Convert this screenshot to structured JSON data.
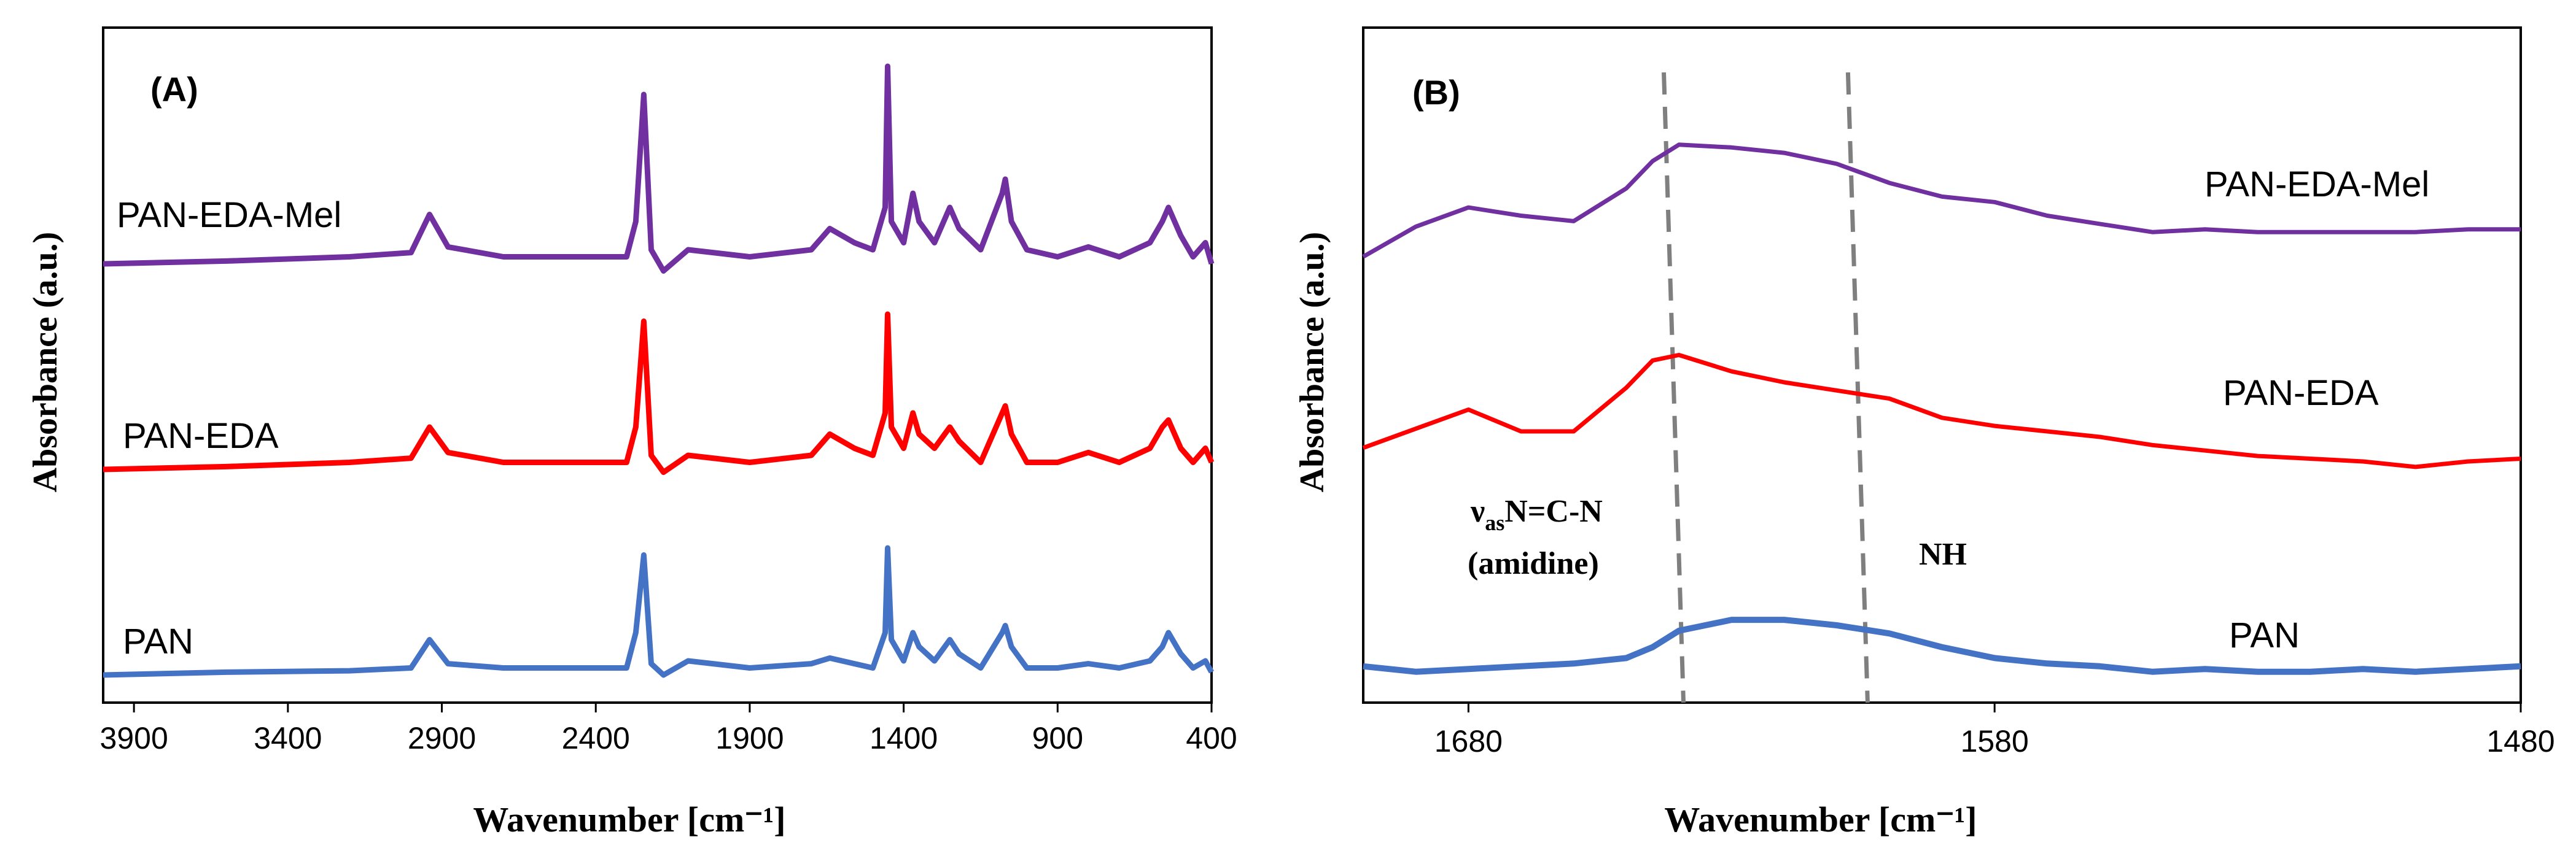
{
  "chart_data": [
    {
      "type": "line",
      "panel_label": "(A)",
      "xlabel": "Wavenumber [cm⁻¹]",
      "ylabel": "Absorbance (a.u.)",
      "xlim": [
        4000,
        400
      ],
      "x_ticks": [
        3900,
        3400,
        2900,
        2400,
        1900,
        1400,
        900,
        400
      ],
      "x_tick_labels": [
        "3900",
        "3400",
        "2900",
        "2400",
        "1900",
        "1400",
        "900",
        "400"
      ],
      "series": [
        {
          "name": "PAN-EDA-Mel",
          "color": "#7030A0",
          "offset": 2.0,
          "x": [
            4000,
            3600,
            3200,
            3000,
            2940,
            2880,
            2700,
            2300,
            2270,
            2244,
            2220,
            2180,
            2100,
            1900,
            1700,
            1640,
            1560,
            1500,
            1460,
            1452,
            1440,
            1400,
            1370,
            1350,
            1300,
            1250,
            1220,
            1150,
            1080,
            1070,
            1050,
            1000,
            900,
            800,
            700,
            600,
            560,
            540,
            500,
            460,
            420,
            400
          ],
          "y": [
            0.0,
            0.02,
            0.05,
            0.08,
            0.35,
            0.12,
            0.05,
            0.05,
            0.3,
            1.2,
            0.1,
            -0.05,
            0.1,
            0.05,
            0.1,
            0.25,
            0.15,
            0.1,
            0.4,
            1.4,
            0.3,
            0.15,
            0.5,
            0.3,
            0.15,
            0.4,
            0.25,
            0.1,
            0.5,
            0.6,
            0.3,
            0.1,
            0.05,
            0.12,
            0.05,
            0.15,
            0.3,
            0.4,
            0.2,
            0.05,
            0.15,
            0.0
          ]
        },
        {
          "name": "PAN-EDA",
          "color": "#FF0000",
          "offset": 1.0,
          "x": [
            4000,
            3600,
            3200,
            3000,
            2940,
            2880,
            2700,
            2300,
            2270,
            2244,
            2220,
            2180,
            2100,
            1900,
            1700,
            1640,
            1560,
            1500,
            1460,
            1452,
            1440,
            1400,
            1370,
            1350,
            1300,
            1250,
            1220,
            1150,
            1080,
            1070,
            1050,
            1000,
            900,
            800,
            700,
            600,
            560,
            540,
            500,
            460,
            420,
            400
          ],
          "y": [
            0.0,
            0.02,
            0.05,
            0.08,
            0.3,
            0.12,
            0.05,
            0.05,
            0.3,
            1.05,
            0.1,
            -0.02,
            0.1,
            0.05,
            0.1,
            0.25,
            0.15,
            0.1,
            0.4,
            1.1,
            0.3,
            0.15,
            0.4,
            0.25,
            0.15,
            0.3,
            0.2,
            0.05,
            0.4,
            0.45,
            0.25,
            0.05,
            0.05,
            0.12,
            0.05,
            0.15,
            0.3,
            0.35,
            0.15,
            0.05,
            0.15,
            0.05
          ]
        },
        {
          "name": "PAN",
          "color": "#4472C4",
          "offset": 0.0,
          "x": [
            4000,
            3600,
            3200,
            3000,
            2940,
            2880,
            2700,
            2300,
            2270,
            2244,
            2220,
            2180,
            2100,
            1900,
            1700,
            1640,
            1560,
            1500,
            1460,
            1452,
            1440,
            1400,
            1370,
            1350,
            1300,
            1250,
            1220,
            1150,
            1080,
            1070,
            1050,
            1000,
            900,
            800,
            700,
            600,
            560,
            540,
            500,
            460,
            420,
            400
          ],
          "y": [
            0.0,
            0.02,
            0.03,
            0.05,
            0.25,
            0.08,
            0.05,
            0.05,
            0.3,
            0.85,
            0.08,
            0.0,
            0.1,
            0.05,
            0.08,
            0.12,
            0.08,
            0.05,
            0.3,
            0.9,
            0.25,
            0.1,
            0.3,
            0.2,
            0.1,
            0.25,
            0.15,
            0.05,
            0.3,
            0.35,
            0.2,
            0.05,
            0.05,
            0.08,
            0.05,
            0.1,
            0.2,
            0.3,
            0.15,
            0.05,
            0.1,
            0.02
          ]
        }
      ]
    },
    {
      "type": "line",
      "panel_label": "(B)",
      "xlabel": "Wavenumber [cm⁻¹]",
      "ylabel": "Absorbance (a.u.)",
      "xlim": [
        1700,
        1480
      ],
      "x_ticks": [
        1680,
        1580,
        1480
      ],
      "x_tick_labels": [
        "1680",
        "1580",
        "1480"
      ],
      "vlines": [
        1641,
        1606
      ],
      "annotations": {
        "nu": "ν",
        "nu_sub": "as",
        "bond": "N=C-N",
        "amidine": "(amidine)",
        "nh": "NH"
      },
      "series": [
        {
          "name": "PAN-EDA-Mel",
          "color": "#7030A0",
          "x": [
            1700,
            1690,
            1680,
            1670,
            1660,
            1650,
            1645,
            1640,
            1630,
            1620,
            1610,
            1600,
            1590,
            1580,
            1570,
            1560,
            1550,
            1540,
            1530,
            1520,
            1510,
            1500,
            1490,
            1480
          ],
          "y": [
            1.55,
            1.66,
            1.73,
            1.7,
            1.68,
            1.8,
            1.9,
            1.96,
            1.95,
            1.93,
            1.89,
            1.82,
            1.77,
            1.75,
            1.7,
            1.67,
            1.64,
            1.65,
            1.64,
            1.64,
            1.64,
            1.64,
            1.65,
            1.65
          ]
        },
        {
          "name": "PAN-EDA",
          "color": "#FF0000",
          "x": [
            1700,
            1690,
            1680,
            1670,
            1660,
            1650,
            1645,
            1640,
            1630,
            1620,
            1610,
            1600,
            1590,
            1580,
            1570,
            1560,
            1550,
            1540,
            1530,
            1520,
            1510,
            1500,
            1490,
            1480
          ],
          "y": [
            0.85,
            0.92,
            0.99,
            0.91,
            0.91,
            1.07,
            1.17,
            1.19,
            1.13,
            1.09,
            1.06,
            1.03,
            0.96,
            0.93,
            0.91,
            0.89,
            0.86,
            0.84,
            0.82,
            0.81,
            0.8,
            0.78,
            0.8,
            0.81
          ]
        },
        {
          "name": "PAN",
          "color": "#4472C4",
          "x": [
            1700,
            1690,
            1680,
            1670,
            1660,
            1650,
            1645,
            1640,
            1630,
            1620,
            1610,
            1600,
            1590,
            1580,
            1570,
            1560,
            1550,
            1540,
            1530,
            1520,
            1510,
            1500,
            1490,
            1480
          ],
          "y": [
            0.05,
            0.03,
            0.04,
            0.05,
            0.06,
            0.08,
            0.12,
            0.18,
            0.22,
            0.22,
            0.2,
            0.17,
            0.12,
            0.08,
            0.06,
            0.05,
            0.03,
            0.04,
            0.03,
            0.03,
            0.04,
            0.03,
            0.04,
            0.05
          ]
        }
      ]
    }
  ]
}
